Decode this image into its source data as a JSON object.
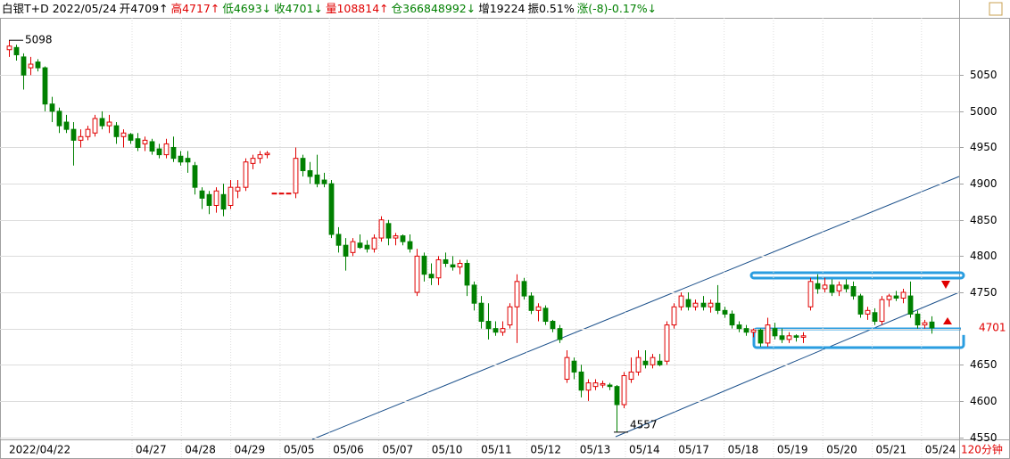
{
  "header": {
    "items": [
      {
        "text": "白银T+D 2022/05/24",
        "color": "#000000"
      },
      {
        "text": "开4709↑",
        "color": "#000000"
      },
      {
        "text": "高4717↑",
        "color": "#e00000"
      },
      {
        "text": "低4693↓",
        "color": "#008000"
      },
      {
        "text": "收4701↓",
        "color": "#008000"
      },
      {
        "text": "量108814↑",
        "color": "#e00000"
      },
      {
        "text": "仓366848992↓",
        "color": "#008000"
      },
      {
        "text": "增19224",
        "color": "#000000"
      },
      {
        "text": "振0.51%",
        "color": "#000000"
      },
      {
        "text": "涨(-8)-0.17%↓",
        "color": "#008000"
      }
    ]
  },
  "chart_data": {
    "type": "candlestick",
    "period": "120分钟",
    "up_color": "#e00000",
    "down_color": "#008000",
    "ylim": [
      4547,
      5129
    ],
    "yticks": [
      4550,
      4600,
      4650,
      4700,
      4750,
      4800,
      4850,
      4900,
      4950,
      5000,
      5050
    ],
    "grid": true,
    "dates": [
      "2022/04/22",
      "04/27",
      "04/28",
      "04/29",
      "05/05",
      "05/06",
      "05/07",
      "05/10",
      "05/11",
      "05/12",
      "05/13",
      "05/14",
      "05/17",
      "05/18",
      "05/19",
      "05/20",
      "05/21",
      "05/24"
    ],
    "high_mark": 5098,
    "low_mark": 4557,
    "last_price": 4701,
    "candles": [
      [
        5085,
        5098,
        5075,
        5090
      ],
      [
        5088,
        5092,
        5070,
        5078
      ],
      [
        5075,
        5080,
        5030,
        5050
      ],
      [
        5060,
        5075,
        5050,
        5065
      ],
      [
        5068,
        5072,
        5055,
        5060
      ],
      [
        5060,
        5062,
        5000,
        5010
      ],
      [
        5010,
        5020,
        4985,
        5000
      ],
      [
        5000,
        5005,
        4970,
        4980
      ],
      [
        4985,
        4995,
        4970,
        4975
      ],
      [
        4975,
        4985,
        4925,
        4960
      ],
      [
        4960,
        4975,
        4950,
        4965
      ],
      [
        4965,
        4980,
        4960,
        4975
      ],
      [
        4970,
        4995,
        4965,
        4990
      ],
      [
        4990,
        5000,
        4975,
        4980
      ],
      [
        4980,
        4995,
        4970,
        4985
      ],
      [
        4980,
        4985,
        4955,
        4965
      ],
      [
        4965,
        4975,
        4950,
        4970
      ],
      [
        4968,
        4970,
        4955,
        4960
      ],
      [
        4962,
        4970,
        4945,
        4950
      ],
      [
        4955,
        4965,
        4945,
        4960
      ],
      [
        4958,
        4962,
        4940,
        4945
      ],
      [
        4948,
        4955,
        4935,
        4940
      ],
      [
        4940,
        4962,
        4935,
        4955
      ],
      [
        4950,
        4965,
        4930,
        4935
      ],
      [
        4938,
        4945,
        4925,
        4930
      ],
      [
        4935,
        4945,
        4915,
        4930
      ],
      [
        4925,
        4930,
        4885,
        4895
      ],
      [
        4890,
        4895,
        4865,
        4880
      ],
      [
        4885,
        4890,
        4858,
        4870
      ],
      [
        4870,
        4895,
        4860,
        4890
      ],
      [
        4885,
        4900,
        4855,
        4865
      ],
      [
        4870,
        4905,
        4865,
        4895
      ],
      [
        4890,
        4905,
        4880,
        4895
      ],
      [
        4895,
        4935,
        4890,
        4930
      ],
      [
        4928,
        4940,
        4920,
        4935
      ],
      [
        4935,
        4945,
        4928,
        4940
      ],
      [
        4940,
        4945,
        4935,
        4942
      ],
      [
        4887,
        4887,
        4887,
        4887
      ],
      [
        4887,
        4887,
        4887,
        4887
      ],
      [
        4887,
        4887,
        4887,
        4887
      ],
      [
        4887,
        4950,
        4880,
        4935
      ],
      [
        4935,
        4940,
        4910,
        4918
      ],
      [
        4918,
        4930,
        4900,
        4910
      ],
      [
        4912,
        4940,
        4895,
        4900
      ],
      [
        4905,
        4915,
        4895,
        4900
      ],
      [
        4900,
        4905,
        4825,
        4830
      ],
      [
        4830,
        4840,
        4805,
        4815
      ],
      [
        4815,
        4825,
        4780,
        4800
      ],
      [
        4805,
        4825,
        4800,
        4820
      ],
      [
        4818,
        4830,
        4810,
        4812
      ],
      [
        4815,
        4822,
        4805,
        4810
      ],
      [
        4810,
        4830,
        4805,
        4825
      ],
      [
        4825,
        4855,
        4820,
        4850
      ],
      [
        4845,
        4850,
        4815,
        4825
      ],
      [
        4825,
        4832,
        4815,
        4828
      ],
      [
        4828,
        4830,
        4815,
        4820
      ],
      [
        4820,
        4830,
        4805,
        4810
      ],
      [
        4750,
        4810,
        4745,
        4800
      ],
      [
        4800,
        4805,
        4765,
        4775
      ],
      [
        4775,
        4790,
        4760,
        4770
      ],
      [
        4770,
        4800,
        4760,
        4795
      ],
      [
        4795,
        4805,
        4785,
        4790
      ],
      [
        4788,
        4800,
        4780,
        4785
      ],
      [
        4785,
        4795,
        4775,
        4790
      ],
      [
        4790,
        4795,
        4745,
        4760
      ],
      [
        4760,
        4765,
        4725,
        4735
      ],
      [
        4735,
        4745,
        4700,
        4710
      ],
      [
        4710,
        4735,
        4685,
        4700
      ],
      [
        4700,
        4710,
        4690,
        4695
      ],
      [
        4695,
        4710,
        4690,
        4700
      ],
      [
        4705,
        4735,
        4700,
        4730
      ],
      [
        4730,
        4775,
        4680,
        4765
      ],
      [
        4765,
        4770,
        4740,
        4745
      ],
      [
        4745,
        4750,
        4720,
        4725
      ],
      [
        4725,
        4735,
        4710,
        4730
      ],
      [
        4728,
        4732,
        4705,
        4710
      ],
      [
        4710,
        4712,
        4695,
        4700
      ],
      [
        4700,
        4705,
        4680,
        4685
      ],
      [
        4630,
        4670,
        4625,
        4660
      ],
      [
        4655,
        4660,
        4630,
        4640
      ],
      [
        4640,
        4650,
        4605,
        4615
      ],
      [
        4615,
        4630,
        4600,
        4625
      ],
      [
        4620,
        4630,
        4615,
        4625
      ],
      [
        4622,
        4628,
        4618,
        4624
      ],
      [
        4622,
        4625,
        4615,
        4620
      ],
      [
        4620,
        4622,
        4557,
        4595
      ],
      [
        4595,
        4640,
        4590,
        4635
      ],
      [
        4630,
        4660,
        4625,
        4640
      ],
      [
        4640,
        4670,
        4635,
        4660
      ],
      [
        4655,
        4670,
        4645,
        4650
      ],
      [
        4650,
        4665,
        4645,
        4660
      ],
      [
        4655,
        4665,
        4648,
        4650
      ],
      [
        4655,
        4710,
        4650,
        4705
      ],
      [
        4705,
        4735,
        4700,
        4730
      ],
      [
        4730,
        4750,
        4725,
        4745
      ],
      [
        4740,
        4750,
        4725,
        4730
      ],
      [
        4730,
        4740,
        4725,
        4735
      ],
      [
        4735,
        4745,
        4725,
        4730
      ],
      [
        4730,
        4740,
        4722,
        4735
      ],
      [
        4735,
        4760,
        4720,
        4725
      ],
      [
        4725,
        4730,
        4715,
        4720
      ],
      [
        4720,
        4725,
        4700,
        4705
      ],
      [
        4705,
        4710,
        4695,
        4700
      ],
      [
        4700,
        4705,
        4690,
        4695
      ],
      [
        4695,
        4700,
        4688,
        4698
      ],
      [
        4698,
        4700,
        4675,
        4680
      ],
      [
        4680,
        4715,
        4675,
        4705
      ],
      [
        4700,
        4708,
        4685,
        4690
      ],
      [
        4690,
        4700,
        4680,
        4685
      ],
      [
        4685,
        4695,
        4680,
        4690
      ],
      [
        4690,
        4692,
        4682,
        4688
      ],
      [
        4688,
        4695,
        4680,
        4690
      ],
      [
        4730,
        4770,
        4725,
        4765
      ],
      [
        4762,
        4775,
        4748,
        4755
      ],
      [
        4755,
        4770,
        4750,
        4760
      ],
      [
        4760,
        4768,
        4745,
        4750
      ],
      [
        4752,
        4765,
        4745,
        4760
      ],
      [
        4760,
        4768,
        4750,
        4755
      ],
      [
        4758,
        4765,
        4740,
        4745
      ],
      [
        4745,
        4748,
        4715,
        4720
      ],
      [
        4720,
        4730,
        4712,
        4725
      ],
      [
        4722,
        4728,
        4705,
        4710
      ],
      [
        4710,
        4745,
        4705,
        4740
      ],
      [
        4740,
        4748,
        4730,
        4745
      ],
      [
        4745,
        4752,
        4738,
        4742
      ],
      [
        4742,
        4755,
        4735,
        4750
      ],
      [
        4745,
        4765,
        4715,
        4720
      ],
      [
        4720,
        4725,
        4700,
        4705
      ],
      [
        4705,
        4712,
        4700,
        4708
      ],
      [
        4709,
        4717,
        4693,
        4701
      ]
    ]
  }
}
